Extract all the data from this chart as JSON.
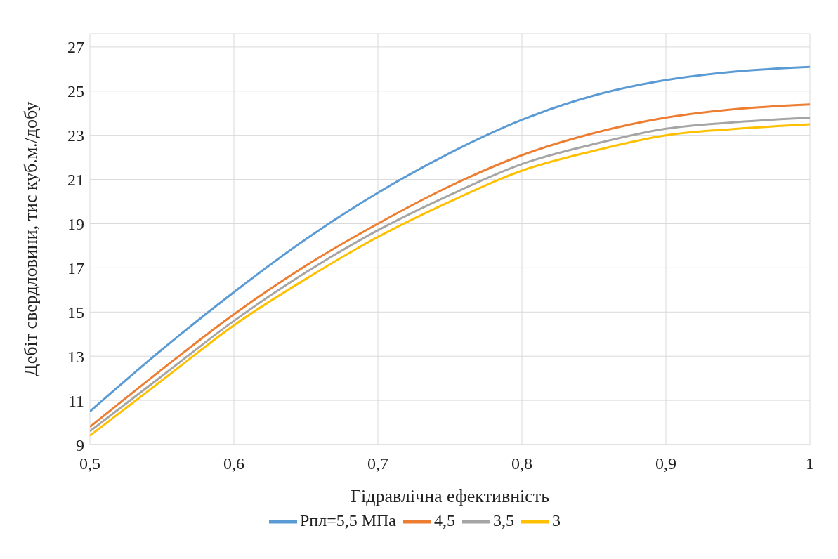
{
  "chart_data": {
    "type": "line",
    "xlabel": "Гідравлічна ефективність",
    "ylabel": "Дебіт свердловини, тис куб.м./добу",
    "x": [
      0.5,
      0.55,
      0.6,
      0.65,
      0.7,
      0.75,
      0.8,
      0.85,
      0.9,
      0.95,
      1
    ],
    "series": [
      {
        "name": "Pпл=5,5 МПа",
        "color": "#5b9bd5",
        "values": [
          10.5,
          13.3,
          15.9,
          18.3,
          20.4,
          22.2,
          23.7,
          24.8,
          25.5,
          25.9,
          26.1
        ]
      },
      {
        "name": "4,5",
        "color": "#ed7d31",
        "values": [
          9.8,
          12.4,
          14.9,
          17.1,
          19.0,
          20.7,
          22.1,
          23.1,
          23.8,
          24.2,
          24.4
        ]
      },
      {
        "name": "3,5",
        "color": "#a5a5a5",
        "values": [
          9.6,
          12.1,
          14.6,
          16.8,
          18.7,
          20.3,
          21.7,
          22.6,
          23.3,
          23.6,
          23.8
        ]
      },
      {
        "name": "3",
        "color": "#ffc000",
        "values": [
          9.4,
          11.9,
          14.4,
          16.5,
          18.4,
          20.0,
          21.4,
          22.3,
          23.0,
          23.3,
          23.5
        ]
      }
    ],
    "xlim": [
      0.5,
      1
    ],
    "xticks": [
      {
        "value": 0.5,
        "label": "0,5"
      },
      {
        "value": 0.6,
        "label": "0,6"
      },
      {
        "value": 0.7,
        "label": "0,7"
      },
      {
        "value": 0.8,
        "label": "0,8"
      },
      {
        "value": 0.9,
        "label": "0,9"
      },
      1
    ],
    "ylim": [
      9,
      27.6
    ],
    "yticks": [
      9,
      11,
      13,
      15,
      17,
      19,
      21,
      23,
      25,
      27
    ],
    "grid": true,
    "legend": "bottom",
    "marker": "none",
    "line_style": "solid"
  }
}
